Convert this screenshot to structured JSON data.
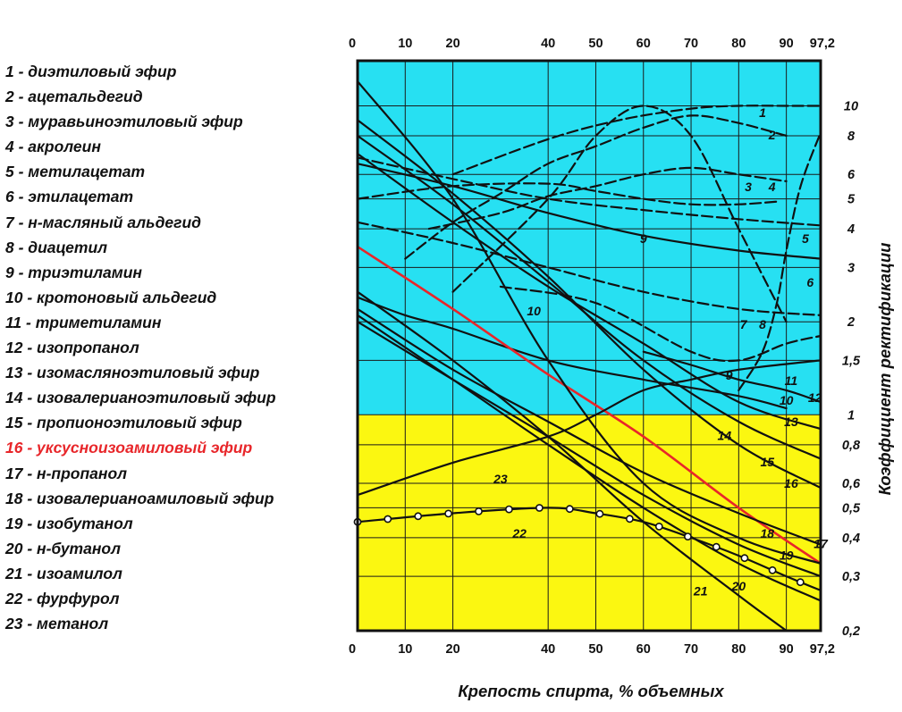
{
  "chart_data": {
    "type": "line",
    "xlabel": "Крепость спирта, % объемных",
    "ylabel": "Коэффициент ректификации",
    "x_ticks": [
      "0",
      "10",
      "20",
      "40",
      "50",
      "60",
      "70",
      "80",
      "90",
      "97,2"
    ],
    "x_tick_values": [
      0,
      10,
      20,
      40,
      50,
      60,
      70,
      80,
      90,
      97.2
    ],
    "xlim": [
      0,
      97.2
    ],
    "y_scale": "log",
    "ylim": [
      0.2,
      14
    ],
    "y_ticks": [
      "10",
      "8",
      "6",
      "5",
      "4",
      "3",
      "2",
      "1,5",
      "1",
      "0,8",
      "0,6",
      "0,5",
      "0,4",
      "0,3",
      "0,2"
    ],
    "y_tick_values": [
      10,
      8,
      6,
      5,
      4,
      3,
      2,
      1.5,
      1,
      0.8,
      0.6,
      0.5,
      0.4,
      0.3,
      0.2
    ],
    "grid": true,
    "background_regions": [
      {
        "from": 1,
        "to": 14,
        "color": "#27e0f2"
      },
      {
        "from": 0.2,
        "to": 1,
        "color": "#fbf711"
      }
    ],
    "legend": [
      "1 - диэтиловый эфир",
      "2 - ацетальдегид",
      "3 - муравьиноэтиловый эфир",
      "4 - акролеин",
      "5 - метилацетат",
      "6 - этилацетат",
      "7 - н-масляный альдегид",
      "8 - диацетил",
      "9 - триэтиламин",
      "10 - кротоновый альдегид",
      "11 - триметиламин",
      "12 - изопропанол",
      "13 - изомасляноэтиловый эфир",
      "14 - изовалерианоэтиловый эфир",
      "15 - пропионоэтиловый эфир",
      "16 - уксусноизоамиловый эфир",
      "17 - н-пропанол",
      "18 - изовалерианоамиловый эфир",
      "19 - изобутанол",
      "20 - н-бутанол",
      "21 - изоамилол",
      "22 - фурфурол",
      "23 - метанол"
    ],
    "highlight_index": 15,
    "highlight_color": "#e8262a",
    "series": [
      {
        "name": "1",
        "style": "dashed",
        "x": [
          20,
          40,
          55,
          70,
          80,
          90,
          97.2
        ],
        "y": [
          6.0,
          7.8,
          9.0,
          9.8,
          10.0,
          10.0,
          10.0
        ]
      },
      {
        "name": "2",
        "style": "dashed",
        "x": [
          10,
          20,
          30,
          40,
          50,
          60,
          70,
          80,
          90
        ],
        "y": [
          3.2,
          4.2,
          5.2,
          6.5,
          7.4,
          8.5,
          9.3,
          8.8,
          8.0
        ]
      },
      {
        "name": "3",
        "style": "dashed",
        "x": [
          0,
          20,
          40,
          50,
          60,
          70,
          80,
          88
        ],
        "y": [
          5.0,
          5.5,
          5.6,
          5.3,
          5.0,
          4.8,
          4.8,
          4.9
        ]
      },
      {
        "name": "4",
        "style": "dashed",
        "x": [
          15,
          30,
          40,
          50,
          60,
          70,
          80,
          90
        ],
        "y": [
          4.0,
          4.5,
          5.1,
          5.5,
          6.0,
          6.3,
          6.0,
          5.7
        ]
      },
      {
        "name": "5",
        "style": "dashed",
        "x": [
          0,
          20,
          40,
          60,
          80,
          97.2
        ],
        "y": [
          6.8,
          5.8,
          5.0,
          4.6,
          4.3,
          4.1
        ]
      },
      {
        "name": "6",
        "style": "dashed",
        "x": [
          80,
          85,
          88,
          90,
          93,
          97.2
        ],
        "y": [
          1.2,
          1.6,
          2.3,
          3.4,
          5.5,
          8.2
        ]
      },
      {
        "name": "7",
        "style": "dashed",
        "x": [
          0,
          20,
          40,
          60,
          80,
          97.2
        ],
        "y": [
          4.2,
          3.6,
          3.0,
          2.5,
          2.2,
          2.1
        ]
      },
      {
        "name": "8",
        "style": "dashed",
        "x": [
          30,
          50,
          70,
          80,
          90,
          97.2
        ],
        "y": [
          2.6,
          2.3,
          1.6,
          1.5,
          1.7,
          1.8
        ]
      },
      {
        "name": "9",
        "style": "dashed",
        "x": [
          20,
          40,
          50,
          60,
          70,
          80,
          90
        ],
        "y": [
          2.5,
          5.0,
          8.0,
          10.0,
          8.0,
          4.0,
          2.0
        ]
      },
      {
        "name": "10",
        "style": "solid",
        "x": [
          0,
          10,
          20,
          40,
          60,
          80,
          90
        ],
        "y": [
          2.4,
          2.1,
          1.9,
          1.5,
          1.3,
          1.15,
          1.05
        ]
      },
      {
        "name": "11",
        "style": "solid",
        "x": [
          0,
          20,
          40,
          60,
          80,
          97.2
        ],
        "y": [
          6.5,
          5.5,
          4.5,
          3.8,
          3.4,
          3.2
        ]
      },
      {
        "name": "12",
        "style": "solid",
        "x": [
          60,
          70,
          80,
          90,
          97.2
        ],
        "y": [
          1.6,
          1.45,
          1.3,
          1.2,
          1.1
        ]
      },
      {
        "name": "13",
        "style": "solid",
        "x": [
          0,
          20,
          40,
          60,
          80,
          97.2
        ],
        "y": [
          7.0,
          4.2,
          2.6,
          1.7,
          1.1,
          0.9
        ]
      },
      {
        "name": "14",
        "style": "solid",
        "x": [
          0,
          20,
          40,
          60,
          80,
          97.2
        ],
        "y": [
          8.0,
          4.8,
          2.7,
          1.5,
          0.95,
          0.72
        ]
      },
      {
        "name": "15",
        "style": "solid",
        "x": [
          0,
          20,
          40,
          60,
          80,
          97.2
        ],
        "y": [
          9.0,
          5.2,
          2.8,
          1.4,
          0.8,
          0.58
        ]
      },
      {
        "name": "16",
        "style": "solid",
        "x": [
          0,
          20,
          40,
          60,
          80,
          97.2
        ],
        "y": [
          3.5,
          2.2,
          1.35,
          0.85,
          0.5,
          0.33
        ]
      },
      {
        "name": "17",
        "style": "solid",
        "x": [
          0,
          20,
          40,
          60,
          80,
          97.2
        ],
        "y": [
          2.2,
          1.4,
          0.95,
          0.65,
          0.48,
          0.38
        ]
      },
      {
        "name": "18",
        "style": "solid",
        "x": [
          0,
          20,
          40,
          60,
          80,
          97.2
        ],
        "y": [
          12.0,
          5.0,
          1.5,
          0.6,
          0.4,
          0.33
        ]
      },
      {
        "name": "19",
        "style": "solid",
        "x": [
          0,
          20,
          40,
          60,
          80,
          97.2
        ],
        "y": [
          2.0,
          1.3,
          0.85,
          0.55,
          0.38,
          0.3
        ]
      },
      {
        "name": "20",
        "style": "solid",
        "x": [
          0,
          20,
          40,
          60,
          80,
          97.2
        ],
        "y": [
          2.1,
          1.3,
          0.8,
          0.5,
          0.33,
          0.25
        ]
      },
      {
        "name": "21",
        "style": "solid",
        "x": [
          0,
          20,
          40,
          60,
          80,
          90
        ],
        "y": [
          2.5,
          1.5,
          0.85,
          0.45,
          0.26,
          0.2
        ]
      },
      {
        "name": "22",
        "style": "circles",
        "x": [
          0,
          20,
          40,
          50,
          60,
          70,
          80,
          90,
          97.2
        ],
        "y": [
          0.45,
          0.48,
          0.5,
          0.48,
          0.45,
          0.4,
          0.35,
          0.3,
          0.27
        ]
      },
      {
        "name": "23",
        "style": "solid",
        "x": [
          0,
          20,
          40,
          50,
          60,
          70,
          80,
          97.2
        ],
        "y": [
          0.55,
          0.7,
          0.85,
          1.0,
          1.2,
          1.3,
          1.4,
          1.5
        ]
      }
    ],
    "curve_labels": [
      {
        "text": "1",
        "series": "1",
        "x": 85,
        "y": 9.2
      },
      {
        "text": "2",
        "series": "2",
        "x": 87,
        "y": 7.8
      },
      {
        "text": "3",
        "series": "3",
        "x": 82,
        "y": 5.3
      },
      {
        "text": "4",
        "series": "4",
        "x": 87,
        "y": 5.3
      },
      {
        "text": "5",
        "series": "5",
        "x": 94,
        "y": 3.6
      },
      {
        "text": "6",
        "series": "6",
        "x": 95,
        "y": 2.6
      },
      {
        "text": "7",
        "series": "7",
        "x": 81,
        "y": 1.9
      },
      {
        "text": "8",
        "series": "8",
        "x": 85,
        "y": 1.9
      },
      {
        "text": "9",
        "series": "9",
        "x": 60,
        "y": 3.6
      },
      {
        "text": "9",
        "series": "9",
        "x": 78,
        "y": 1.3
      },
      {
        "text": "10",
        "series": "10",
        "x": 37,
        "y": 2.1
      },
      {
        "text": "10",
        "series": "10",
        "x": 90,
        "y": 1.08
      },
      {
        "text": "11",
        "series": "11",
        "x": 91,
        "y": 1.25
      },
      {
        "text": "12",
        "series": "12",
        "x": 96,
        "y": 1.1
      },
      {
        "text": "13",
        "series": "13",
        "x": 91,
        "y": 0.92
      },
      {
        "text": "14",
        "series": "14",
        "x": 77,
        "y": 0.83
      },
      {
        "text": "15",
        "series": "15",
        "x": 86,
        "y": 0.68
      },
      {
        "text": "16",
        "series": "16",
        "x": 91,
        "y": 0.58
      },
      {
        "text": "17",
        "series": "17",
        "x": 97.2,
        "y": 0.37
      },
      {
        "text": "18",
        "series": "18",
        "x": 86,
        "y": 0.4
      },
      {
        "text": "19",
        "series": "19",
        "x": 90,
        "y": 0.34
      },
      {
        "text": "20",
        "series": "20",
        "x": 80,
        "y": 0.27
      },
      {
        "text": "21",
        "series": "21",
        "x": 72,
        "y": 0.26
      },
      {
        "text": "22",
        "series": "22",
        "x": 34,
        "y": 0.4
      },
      {
        "text": "23",
        "series": "23",
        "x": 30,
        "y": 0.6
      }
    ]
  }
}
